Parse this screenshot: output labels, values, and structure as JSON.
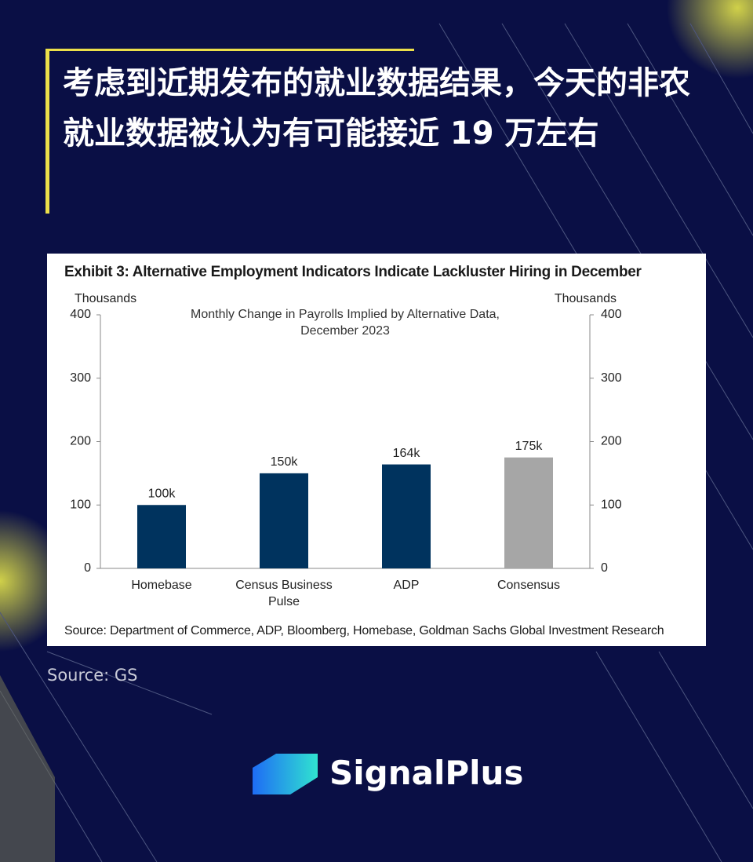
{
  "heading": "考虑到近期发布的就业数据结果，今天的非农就业数据被认为有可能接近 19 万左右",
  "chart_data": {
    "type": "bar",
    "title": "Exhibit 3: Alternative Employment Indicators Indicate Lackluster Hiring in December",
    "subtitle": "Monthly Change in Payrolls Implied by Alternative Data, December 2023",
    "ylabel": "Thousands",
    "y2label": "Thousands",
    "categories": [
      "Homebase",
      "Census Business Pulse",
      "ADP",
      "Consensus"
    ],
    "values": [
      100,
      150,
      164,
      175
    ],
    "value_labels": [
      "100k",
      "150k",
      "164k",
      "175k"
    ],
    "colors": [
      "#00335e",
      "#00335e",
      "#00335e",
      "#a6a6a6"
    ],
    "ylim": [
      0,
      400
    ],
    "yticks": [
      0,
      100,
      200,
      300,
      400
    ],
    "y2lim": [
      0,
      400
    ],
    "y2ticks": [
      0,
      100,
      200,
      300,
      400
    ],
    "source": "Source: Department of Commerce, ADP, Bloomberg, Homebase, Goldman Sachs Global Investment Research"
  },
  "source": "Source: GS",
  "brand": "SignalPlus"
}
